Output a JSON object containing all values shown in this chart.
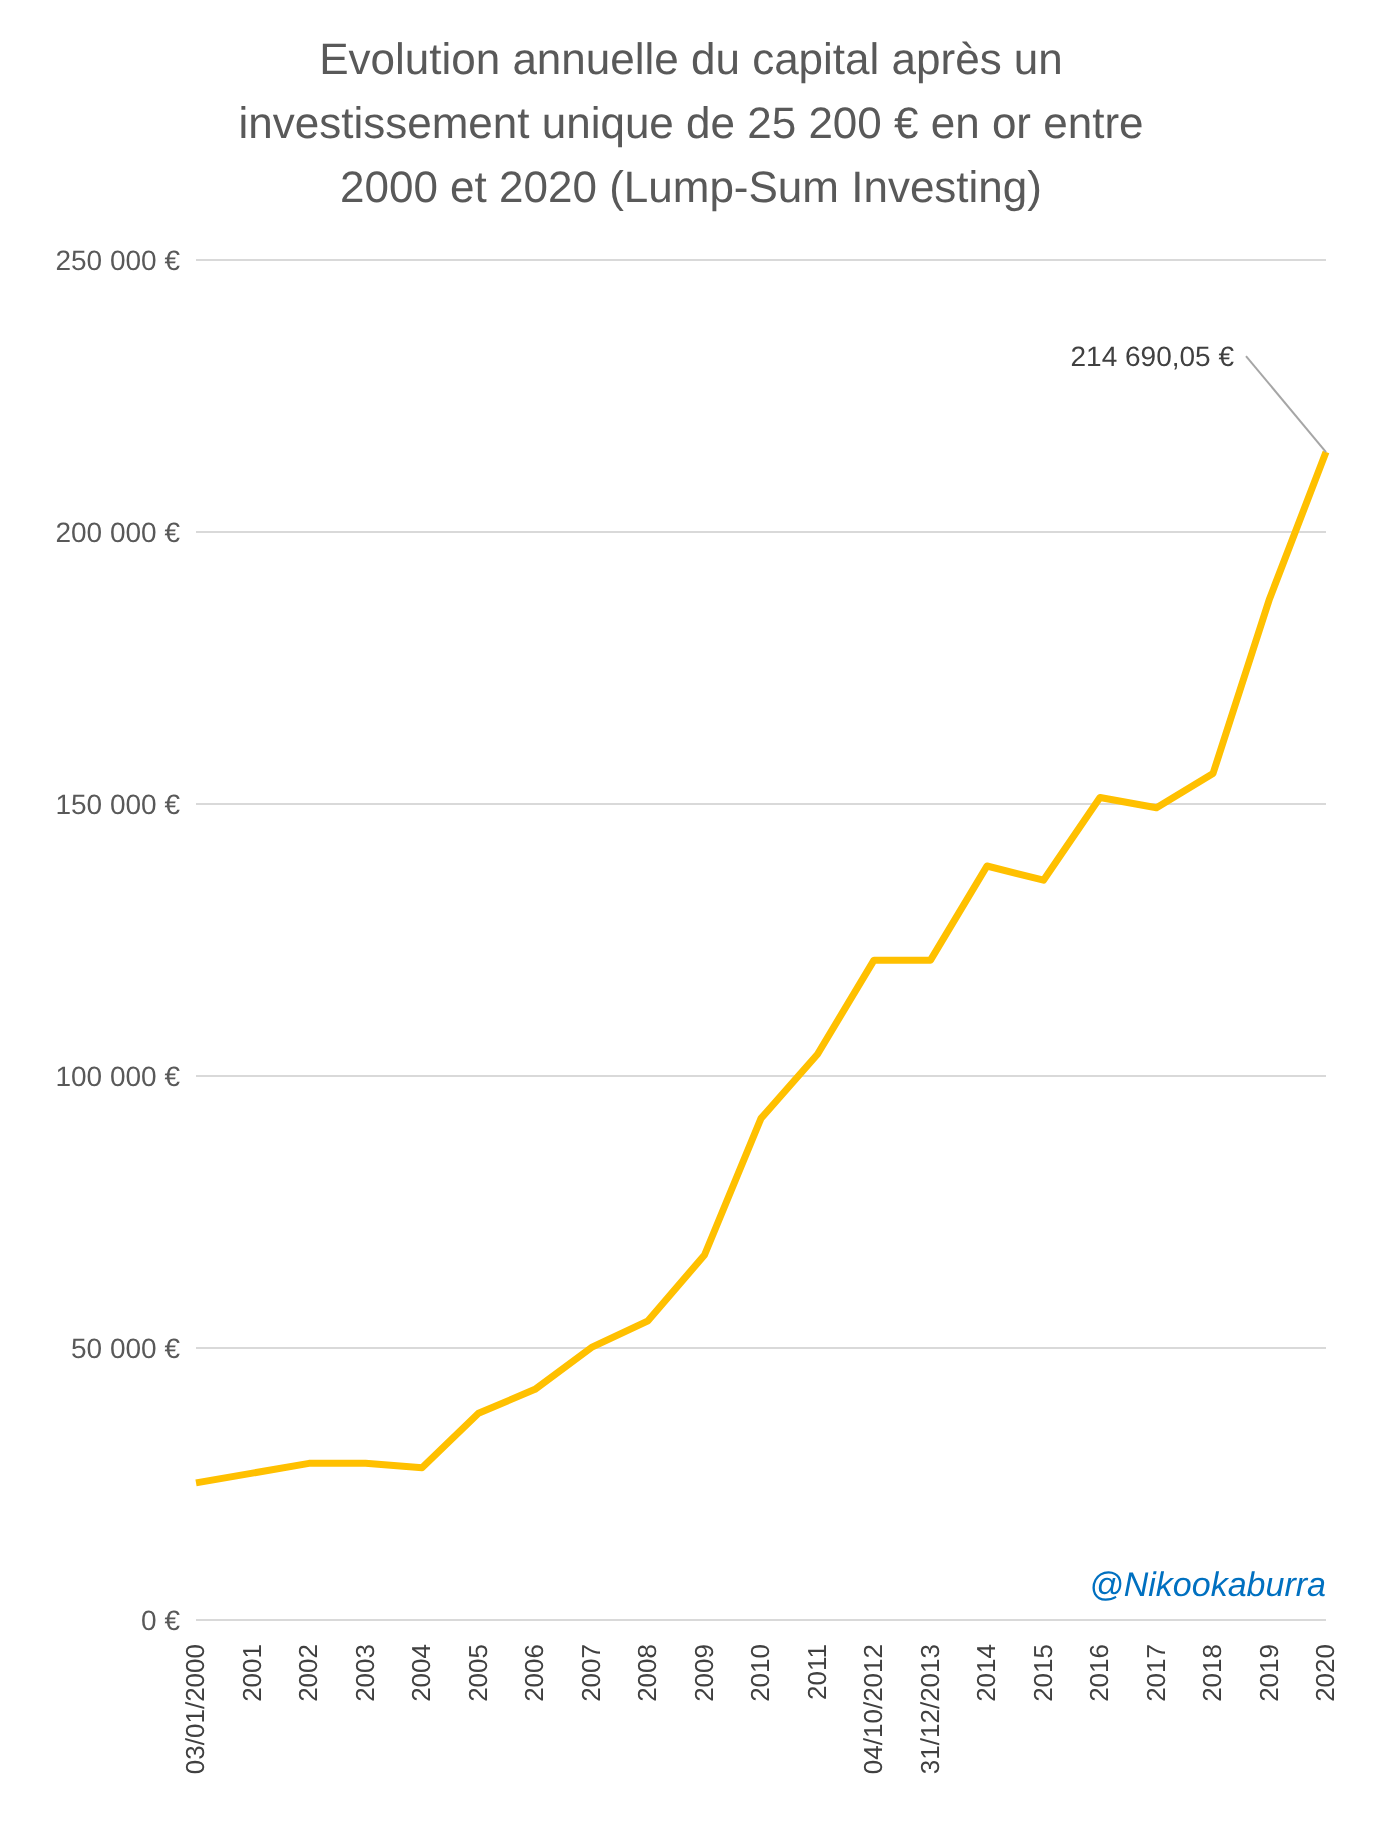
{
  "chart_data": {
    "type": "line",
    "title": "Evolution annuelle du capital après un investissement unique de 25 200 € en or entre 2000 et 2020 (Lump-Sum Investing)",
    "categories": [
      "03/01/2000",
      "2001",
      "2002",
      "2003",
      "2004",
      "2005",
      "2006",
      "2007",
      "2008",
      "2009",
      "2010",
      "2011",
      "04/10/2012",
      "31/12/2013",
      "2014",
      "2015",
      "2016",
      "2017",
      "2018",
      "2019",
      "2020"
    ],
    "series": [
      {
        "color": "#ffc000",
        "values": [
          25200,
          27000,
          28800,
          28800,
          28000,
          38000,
          42400,
          50100,
          55000,
          67100,
          92200,
          104000,
          121300,
          121300,
          138600,
          136000,
          151200,
          149300,
          155600,
          187700,
          214690.05
        ],
        "value_labels": [
          null,
          null,
          null,
          null,
          null,
          null,
          null,
          null,
          null,
          null,
          null,
          null,
          null,
          null,
          null,
          null,
          null,
          null,
          null,
          null,
          "214 690,05 €"
        ]
      }
    ],
    "ylim": [
      0,
      250000
    ],
    "yticks": [
      {
        "value": 0,
        "label": "0 €"
      },
      {
        "value": 50000,
        "label": "50 000 €"
      },
      {
        "value": 100000,
        "label": "100 000 €"
      },
      {
        "value": 150000,
        "label": "150 000 €"
      },
      {
        "value": 200000,
        "label": "200 000 €"
      },
      {
        "value": 250000,
        "label": "250 000 €"
      }
    ],
    "grid": "y",
    "marker": "none",
    "line_style": "solid",
    "annotations": [
      "@Nikookaburra"
    ]
  }
}
